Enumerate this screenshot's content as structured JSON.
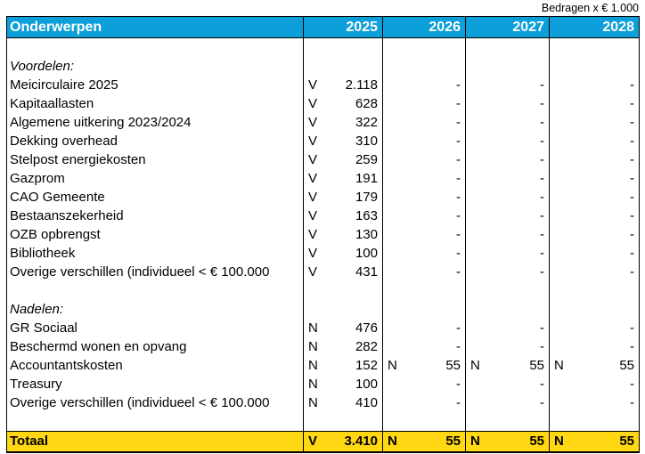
{
  "units_note": "Bedragen x € 1.000",
  "colors": {
    "header_bg": "#0c9fd9",
    "header_text": "#ffffff",
    "total_bg": "#ffd712",
    "border": "#000000"
  },
  "table": {
    "header": {
      "subject": "Onderwerpen",
      "years": [
        "2025",
        "2026",
        "2027",
        "2028"
      ]
    },
    "rows": [
      {
        "type": "spacer",
        "label": "",
        "cells": []
      },
      {
        "type": "section",
        "label": "Voordelen:",
        "cells": []
      },
      {
        "type": "data",
        "label": "Meicirculaire 2025",
        "cells": [
          {
            "sign": "V",
            "value": "2.118"
          },
          {
            "sign": "",
            "value": "-"
          },
          {
            "sign": "",
            "value": "-"
          },
          {
            "sign": "",
            "value": "-"
          }
        ]
      },
      {
        "type": "data",
        "label": "Kapitaallasten",
        "cells": [
          {
            "sign": "V",
            "value": "628"
          },
          {
            "sign": "",
            "value": "-"
          },
          {
            "sign": "",
            "value": "-"
          },
          {
            "sign": "",
            "value": "-"
          }
        ]
      },
      {
        "type": "data",
        "label": "Algemene uitkering 2023/2024",
        "cells": [
          {
            "sign": "V",
            "value": "322"
          },
          {
            "sign": "",
            "value": "-"
          },
          {
            "sign": "",
            "value": "-"
          },
          {
            "sign": "",
            "value": "-"
          }
        ]
      },
      {
        "type": "data",
        "label": "Dekking overhead",
        "cells": [
          {
            "sign": "V",
            "value": "310"
          },
          {
            "sign": "",
            "value": "-"
          },
          {
            "sign": "",
            "value": "-"
          },
          {
            "sign": "",
            "value": "-"
          }
        ]
      },
      {
        "type": "data",
        "label": "Stelpost energiekosten",
        "cells": [
          {
            "sign": "V",
            "value": "259"
          },
          {
            "sign": "",
            "value": "-"
          },
          {
            "sign": "",
            "value": "-"
          },
          {
            "sign": "",
            "value": "-"
          }
        ]
      },
      {
        "type": "data",
        "label": "Gazprom",
        "cells": [
          {
            "sign": "V",
            "value": "191"
          },
          {
            "sign": "",
            "value": "-"
          },
          {
            "sign": "",
            "value": "-"
          },
          {
            "sign": "",
            "value": "-"
          }
        ]
      },
      {
        "type": "data",
        "label": "CAO Gemeente",
        "cells": [
          {
            "sign": "V",
            "value": "179"
          },
          {
            "sign": "",
            "value": "-"
          },
          {
            "sign": "",
            "value": "-"
          },
          {
            "sign": "",
            "value": "-"
          }
        ]
      },
      {
        "type": "data",
        "label": "Bestaanszekerheid",
        "cells": [
          {
            "sign": "V",
            "value": "163"
          },
          {
            "sign": "",
            "value": "-"
          },
          {
            "sign": "",
            "value": "-"
          },
          {
            "sign": "",
            "value": "-"
          }
        ]
      },
      {
        "type": "data",
        "label": "OZB opbrengst",
        "cells": [
          {
            "sign": "V",
            "value": "130"
          },
          {
            "sign": "",
            "value": "-"
          },
          {
            "sign": "",
            "value": "-"
          },
          {
            "sign": "",
            "value": "-"
          }
        ]
      },
      {
        "type": "data",
        "label": "Bibliotheek",
        "cells": [
          {
            "sign": "V",
            "value": "100"
          },
          {
            "sign": "",
            "value": "-"
          },
          {
            "sign": "",
            "value": "-"
          },
          {
            "sign": "",
            "value": "-"
          }
        ]
      },
      {
        "type": "data",
        "label": "Overige verschillen (individueel < € 100.000",
        "cells": [
          {
            "sign": "V",
            "value": "431"
          },
          {
            "sign": "",
            "value": "-"
          },
          {
            "sign": "",
            "value": "-"
          },
          {
            "sign": "",
            "value": "-"
          }
        ]
      },
      {
        "type": "spacer",
        "label": "",
        "cells": []
      },
      {
        "type": "section",
        "label": "Nadelen:",
        "cells": []
      },
      {
        "type": "data",
        "label": "GR Sociaal",
        "cells": [
          {
            "sign": "N",
            "value": "476"
          },
          {
            "sign": "",
            "value": "-"
          },
          {
            "sign": "",
            "value": "-"
          },
          {
            "sign": "",
            "value": "-"
          }
        ]
      },
      {
        "type": "data",
        "label": "Beschermd wonen en opvang",
        "cells": [
          {
            "sign": "N",
            "value": "282"
          },
          {
            "sign": "",
            "value": "-"
          },
          {
            "sign": "",
            "value": "-"
          },
          {
            "sign": "",
            "value": "-"
          }
        ]
      },
      {
        "type": "data",
        "label": "Accountantskosten",
        "cells": [
          {
            "sign": "N",
            "value": "152"
          },
          {
            "sign": "N",
            "value": "55"
          },
          {
            "sign": "N",
            "value": "55"
          },
          {
            "sign": "N",
            "value": "55"
          }
        ]
      },
      {
        "type": "data",
        "label": "Treasury",
        "cells": [
          {
            "sign": "N",
            "value": "100"
          },
          {
            "sign": "",
            "value": "-"
          },
          {
            "sign": "",
            "value": "-"
          },
          {
            "sign": "",
            "value": "-"
          }
        ]
      },
      {
        "type": "data",
        "label": "Overige verschillen (individueel < € 100.000",
        "cells": [
          {
            "sign": "N",
            "value": "410"
          },
          {
            "sign": "",
            "value": "-"
          },
          {
            "sign": "",
            "value": "-"
          },
          {
            "sign": "",
            "value": "-"
          }
        ]
      },
      {
        "type": "spacer",
        "label": "",
        "cells": []
      }
    ],
    "total": {
      "label": "Totaal",
      "cells": [
        {
          "sign": "V",
          "value": "3.410"
        },
        {
          "sign": "N",
          "value": "55"
        },
        {
          "sign": "N",
          "value": "55"
        },
        {
          "sign": "N",
          "value": "55"
        }
      ]
    }
  }
}
